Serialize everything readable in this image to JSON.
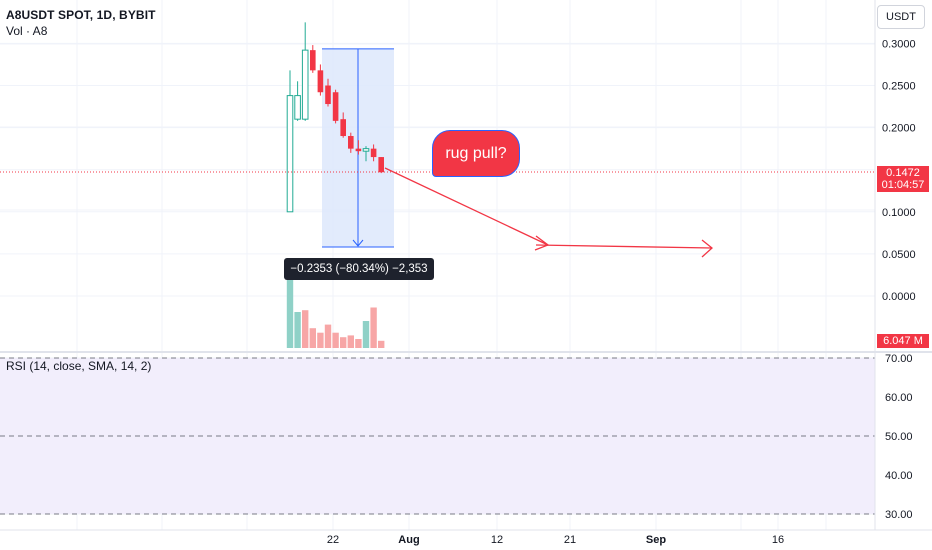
{
  "header": {
    "title": "A8USDT SPOT, 1D, BYBIT",
    "volume_label": "Vol · A8",
    "currency": "USDT"
  },
  "annotation": {
    "note": "rug pull?",
    "measure": "−0.2353 (−80.34%) −2,353"
  },
  "price_badge": {
    "value": "0.1472",
    "countdown": "01:04:57"
  },
  "volume_badge": "6.047 M",
  "rsi": {
    "label": "RSI (14, close, SMA, 14, 2)",
    "ticks": [
      "70.00",
      "60.00",
      "50.00",
      "40.00",
      "30.00"
    ],
    "upper": 70,
    "lower": 30,
    "middle": 50
  },
  "colors": {
    "up": "#22ab94",
    "down": "#f23645",
    "volume_up": "#8fd1c7",
    "volume_down": "#f7a6a6",
    "measure_fill": "#dde7fc",
    "measure_stroke": "#2962ff",
    "rsi_band": "#f2eefc"
  },
  "chart_data": {
    "type": "candlestick",
    "y_axis_ticks": [
      "0.3000",
      "0.2500",
      "0.2000",
      "0.1500",
      "0.1000",
      "0.0500",
      "0.0000"
    ],
    "x_axis_ticks": [
      "22",
      "Aug",
      "12",
      "21",
      "Sep",
      "16"
    ],
    "ylim": [
      -0.02,
      0.33
    ],
    "last_price": 0.1472,
    "candles": [
      {
        "o": 0.1,
        "h": 0.268,
        "l": 0.1,
        "c": 0.238
      },
      {
        "o": 0.21,
        "h": 0.255,
        "l": 0.208,
        "c": 0.238
      },
      {
        "o": 0.21,
        "h": 0.325,
        "l": 0.208,
        "c": 0.292
      },
      {
        "o": 0.292,
        "h": 0.298,
        "l": 0.265,
        "c": 0.268
      },
      {
        "o": 0.268,
        "h": 0.275,
        "l": 0.238,
        "c": 0.242
      },
      {
        "o": 0.25,
        "h": 0.258,
        "l": 0.225,
        "c": 0.228
      },
      {
        "o": 0.242,
        "h": 0.245,
        "l": 0.205,
        "c": 0.208
      },
      {
        "o": 0.21,
        "h": 0.218,
        "l": 0.188,
        "c": 0.19
      },
      {
        "o": 0.19,
        "h": 0.194,
        "l": 0.17,
        "c": 0.175
      },
      {
        "o": 0.175,
        "h": 0.185,
        "l": 0.168,
        "c": 0.172
      },
      {
        "o": 0.172,
        "h": 0.178,
        "l": 0.16,
        "c": 0.175
      },
      {
        "o": 0.175,
        "h": 0.18,
        "l": 0.16,
        "c": 0.165
      },
      {
        "o": 0.165,
        "h": 0.165,
        "l": 0.146,
        "c": 0.147
      }
    ],
    "volume": [
      {
        "v": 76,
        "dir": "up"
      },
      {
        "v": 40,
        "dir": "up"
      },
      {
        "v": 42,
        "dir": "down"
      },
      {
        "v": 22,
        "dir": "down"
      },
      {
        "v": 17,
        "dir": "down"
      },
      {
        "v": 26,
        "dir": "down"
      },
      {
        "v": 17,
        "dir": "down"
      },
      {
        "v": 12,
        "dir": "down"
      },
      {
        "v": 14,
        "dir": "down"
      },
      {
        "v": 10,
        "dir": "down"
      },
      {
        "v": 30,
        "dir": "up"
      },
      {
        "v": 45,
        "dir": "down"
      },
      {
        "v": 8,
        "dir": "down"
      }
    ]
  }
}
